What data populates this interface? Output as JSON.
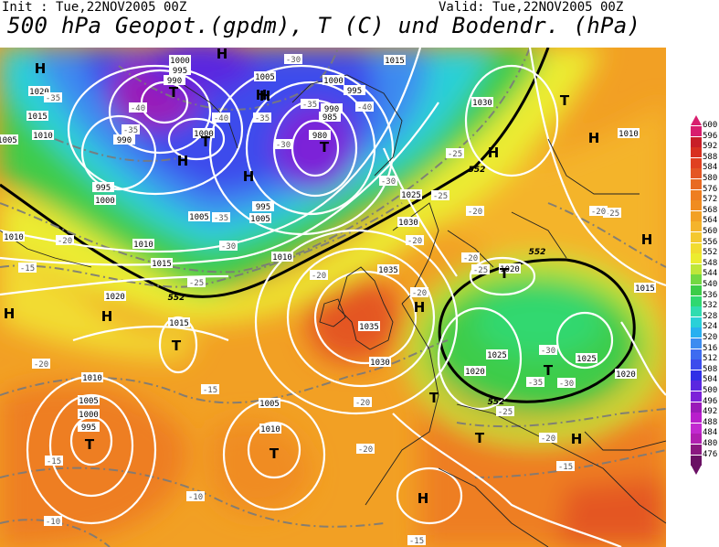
{
  "header": {
    "init": "Init : Tue,22NOV2005 00Z",
    "valid": "Valid: Tue,22NOV2005 00Z",
    "title": "500 hPa Geopot.(gpdm), T (C) und Bodendr. (hPa)"
  },
  "colors": {
    "purple": "#9a1ab8",
    "blue_dark": "#2c2ce8",
    "blue": "#3e6cf0",
    "cyan": "#22c8e8",
    "teal": "#30d8b0",
    "green": "#22c840",
    "yellow": "#f0e830",
    "orange_light": "#f4b42c",
    "orange": "#f09020",
    "orange_dark": "#e66a20"
  },
  "legend": {
    "levels": [
      "600",
      "596",
      "592",
      "588",
      "584",
      "580",
      "576",
      "572",
      "568",
      "564",
      "560",
      "556",
      "552",
      "548",
      "544",
      "540",
      "536",
      "532",
      "528",
      "524",
      "520",
      "516",
      "512",
      "508",
      "504",
      "500",
      "496",
      "492",
      "488",
      "484",
      "480",
      "476"
    ],
    "colors": [
      "#d81e6e",
      "#c81e28",
      "#d83020",
      "#e04020",
      "#e45624",
      "#e86a22",
      "#ee7e20",
      "#f08c20",
      "#f2a024",
      "#f4b42c",
      "#f4c830",
      "#f2dc30",
      "#ecec30",
      "#bee63a",
      "#72d842",
      "#3ccc48",
      "#30d870",
      "#30dcb0",
      "#2ad0d8",
      "#28b0f0",
      "#3c8cf0",
      "#3e6cf0",
      "#3c4cec",
      "#3030e6",
      "#5a28e0",
      "#7c22d8",
      "#9a1ab8",
      "#b81ecc",
      "#c22ad0",
      "#b020b0",
      "#8a1880",
      "#6a1064"
    ]
  },
  "map": {
    "contour_558": "552",
    "pressure_centers": [
      {
        "label": "H"
      },
      {
        "label": "H"
      },
      {
        "label": "H"
      },
      {
        "label": "H"
      },
      {
        "label": "H"
      },
      {
        "label": "H"
      },
      {
        "label": "H"
      },
      {
        "label": "H"
      },
      {
        "label": "H"
      },
      {
        "label": "H"
      },
      {
        "label": "H"
      },
      {
        "label": "H"
      },
      {
        "label": "H"
      },
      {
        "label": "H"
      },
      {
        "label": "T"
      },
      {
        "label": "T"
      },
      {
        "label": "T"
      },
      {
        "label": "T"
      },
      {
        "label": "T"
      },
      {
        "label": "T"
      },
      {
        "label": "T"
      },
      {
        "label": "T"
      },
      {
        "label": "T"
      },
      {
        "label": "T"
      },
      {
        "label": "T"
      }
    ],
    "isobar_labels": [
      "1000",
      "995",
      "990",
      "1005",
      "1000",
      "995",
      "985",
      "980",
      "990",
      "1015",
      "1020",
      "1015",
      "1010",
      "990",
      "1000",
      "995",
      "1000",
      "1005",
      "995",
      "1005",
      "1010",
      "1015",
      "1010",
      "1025",
      "1030",
      "1035",
      "1035",
      "1030",
      "1020",
      "1025",
      "1020",
      "1025",
      "1020",
      "1015",
      "1010",
      "1005",
      "1000",
      "995",
      "1010",
      "1005",
      "1010",
      "1020",
      "1015",
      "1030",
      "1010",
      "1005"
    ],
    "temp_labels": [
      "-30",
      "-35",
      "-40",
      "-35",
      "-35",
      "-40",
      "-30",
      "-35",
      "-40",
      "-30",
      "-35",
      "-30",
      "-25",
      "-20",
      "-25",
      "-20",
      "-15",
      "-20",
      "-25",
      "-20",
      "-15",
      "-20",
      "-25",
      "-20",
      "-25",
      "-20",
      "-30",
      "-35",
      "-30",
      "-25",
      "-20",
      "-15",
      "-10",
      "-10",
      "-15",
      "-20",
      "-20",
      "-15",
      "-20"
    ]
  }
}
